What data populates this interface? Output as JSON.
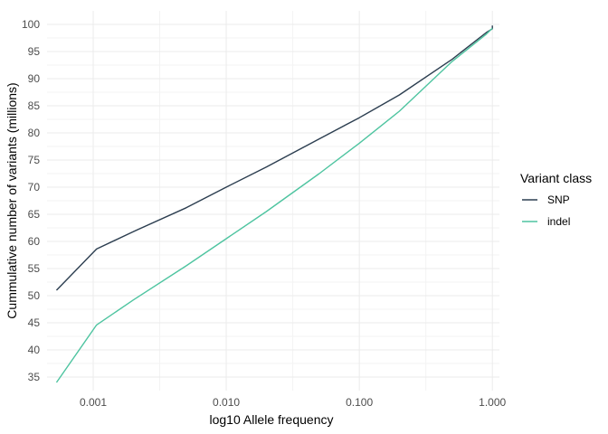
{
  "chart_data": {
    "type": "line",
    "xscale": "log10",
    "xlabel": "log10 Allele frequency",
    "ylabel": "Cummulative number of variants (millions)",
    "xlim": [
      0.00045,
      1.13
    ],
    "ylim": [
      32.5,
      102.5
    ],
    "xticks": [
      0.001,
      0.01,
      0.1,
      1.0
    ],
    "xtick_labels": [
      "0.001",
      "0.010",
      "0.100",
      "1.000"
    ],
    "yticks": [
      35,
      40,
      45,
      50,
      55,
      60,
      65,
      70,
      75,
      80,
      85,
      90,
      95,
      100
    ],
    "ytick_labels": [
      "35",
      "40",
      "45",
      "50",
      "55",
      "60",
      "65",
      "70",
      "75",
      "80",
      "85",
      "90",
      "95",
      "100"
    ],
    "grid": true,
    "legend": {
      "title": "Variant class",
      "position": "right"
    },
    "series": [
      {
        "name": "SNP",
        "color": "#2c3e50",
        "x": [
          0.00053,
          0.00106,
          0.002,
          0.005,
          0.01,
          0.02,
          0.05,
          0.1,
          0.2,
          0.5,
          0.9,
          1.0,
          1.0
        ],
        "y": [
          51.0,
          58.6,
          61.8,
          66.2,
          70.0,
          73.7,
          78.9,
          82.8,
          87.0,
          93.6,
          98.5,
          99.2,
          99.8
        ]
      },
      {
        "name": "indel",
        "color": "#4ec4a0",
        "x": [
          0.00053,
          0.00106,
          0.002,
          0.005,
          0.01,
          0.02,
          0.05,
          0.1,
          0.2,
          0.5,
          0.9,
          1.0
        ],
        "y": [
          34.0,
          44.6,
          49.2,
          55.5,
          60.5,
          65.5,
          72.5,
          78.1,
          84.0,
          93.2,
          98.2,
          99.3
        ]
      }
    ]
  }
}
